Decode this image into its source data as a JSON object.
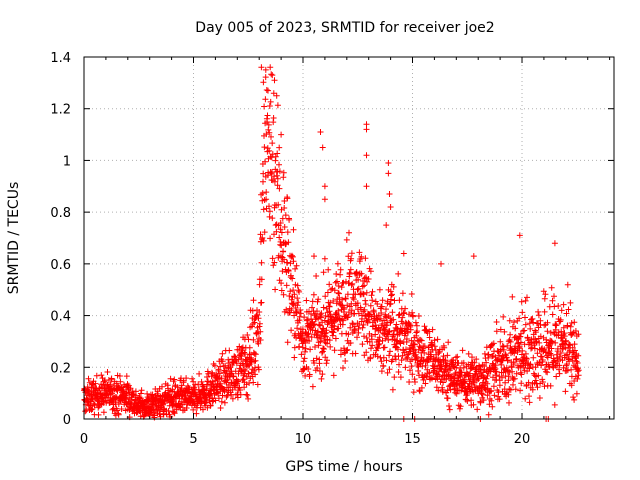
{
  "chart_data": {
    "type": "scatter",
    "title": "Day 005 of 2023, SRMTID for receiver joe2",
    "xlabel": "GPS time / hours",
    "ylabel": "SRMTID / TECUs",
    "xlim": [
      0,
      24.2
    ],
    "ylim": [
      0,
      1.4
    ],
    "xticks": [
      0,
      5,
      10,
      15,
      20
    ],
    "xtick_labels": [
      "0",
      "5",
      "10",
      "15",
      "20"
    ],
    "yticks": [
      0,
      0.2,
      0.4,
      0.6,
      0.8,
      1,
      1.2,
      1.4
    ],
    "ytick_labels": [
      "0",
      "0.2",
      "0.4",
      "0.6",
      "0.8",
      "1",
      "1.2",
      "1.4"
    ],
    "grid": true,
    "marker": "+",
    "color": "#ff0000",
    "series": [
      {
        "name": "SRMTID",
        "trend_x": [
          0,
          1,
          2,
          2.5,
          3,
          4,
          5,
          6,
          7,
          7.5,
          8,
          8.2,
          8.5,
          9,
          9.5,
          10,
          11,
          12,
          12.5,
          13,
          13.5,
          14,
          15,
          16,
          17,
          18,
          19,
          20,
          21,
          22,
          22.6
        ],
        "trend_y": [
          0.08,
          0.1,
          0.09,
          0.05,
          0.05,
          0.08,
          0.08,
          0.13,
          0.18,
          0.22,
          0.38,
          0.95,
          1.05,
          0.75,
          0.5,
          0.3,
          0.35,
          0.45,
          0.5,
          0.4,
          0.3,
          0.35,
          0.28,
          0.22,
          0.15,
          0.15,
          0.2,
          0.27,
          0.27,
          0.3,
          0.2
        ],
        "spread": [
          0.03,
          0.035,
          0.035,
          0.025,
          0.025,
          0.035,
          0.03,
          0.04,
          0.05,
          0.06,
          0.12,
          0.22,
          0.22,
          0.18,
          0.12,
          0.07,
          0.08,
          0.1,
          0.1,
          0.1,
          0.08,
          0.09,
          0.07,
          0.06,
          0.05,
          0.05,
          0.07,
          0.09,
          0.1,
          0.1,
          0.06
        ],
        "points_per_hour": 110,
        "x_end": 22.6,
        "outliers": [
          [
            8.1,
            1.36
          ],
          [
            8.3,
            1.35
          ],
          [
            8.5,
            1.36
          ],
          [
            8.6,
            1.33
          ],
          [
            8.7,
            1.31
          ],
          [
            8.4,
            1.27
          ],
          [
            8.8,
            1.25
          ],
          [
            9.0,
            1.1
          ],
          [
            10.8,
            1.11
          ],
          [
            10.9,
            1.05
          ],
          [
            11.0,
            0.9
          ],
          [
            11.0,
            0.85
          ],
          [
            12.9,
            1.14
          ],
          [
            12.9,
            1.12
          ],
          [
            12.9,
            1.02
          ],
          [
            12.9,
            0.9
          ],
          [
            13.9,
            0.99
          ],
          [
            13.9,
            0.95
          ],
          [
            13.95,
            0.87
          ],
          [
            14.0,
            0.82
          ],
          [
            13.8,
            0.75
          ],
          [
            10.5,
            0.63
          ],
          [
            11.0,
            0.62
          ],
          [
            12.1,
            0.72
          ],
          [
            14.6,
            0.64
          ],
          [
            16.3,
            0.6
          ],
          [
            17.8,
            0.63
          ],
          [
            19.9,
            0.71
          ],
          [
            21.5,
            0.68
          ]
        ],
        "zero_points": [
          14.6,
          15.1,
          18.1,
          21.1,
          21.2
        ]
      }
    ]
  }
}
